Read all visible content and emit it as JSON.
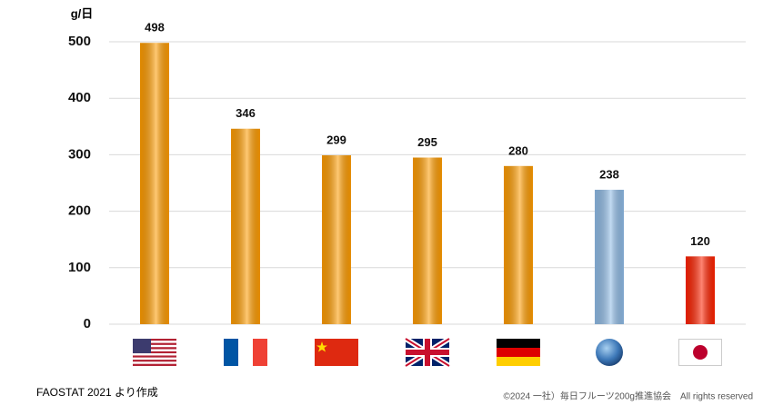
{
  "chart_data": {
    "type": "bar",
    "y_axis_label": "g/日",
    "categories": [
      null,
      null,
      null,
      null,
      null,
      null,
      null
    ],
    "values": [
      498,
      346,
      299,
      295,
      280,
      238,
      120
    ],
    "colors": [
      "#ff9c00",
      "#ff9c00",
      "#ff9c00",
      "#ff9c00",
      "#ff9c00",
      "#8fbbe6",
      "#ff2200"
    ],
    "ylim": [
      0,
      500
    ],
    "yticks": [
      0,
      100,
      200,
      300,
      400,
      500
    ],
    "grid": true,
    "source": "FAOSTAT 2021 より作成",
    "copyright": "©2024 一社）毎日フルーツ200g推進協会　All rights reserved"
  }
}
